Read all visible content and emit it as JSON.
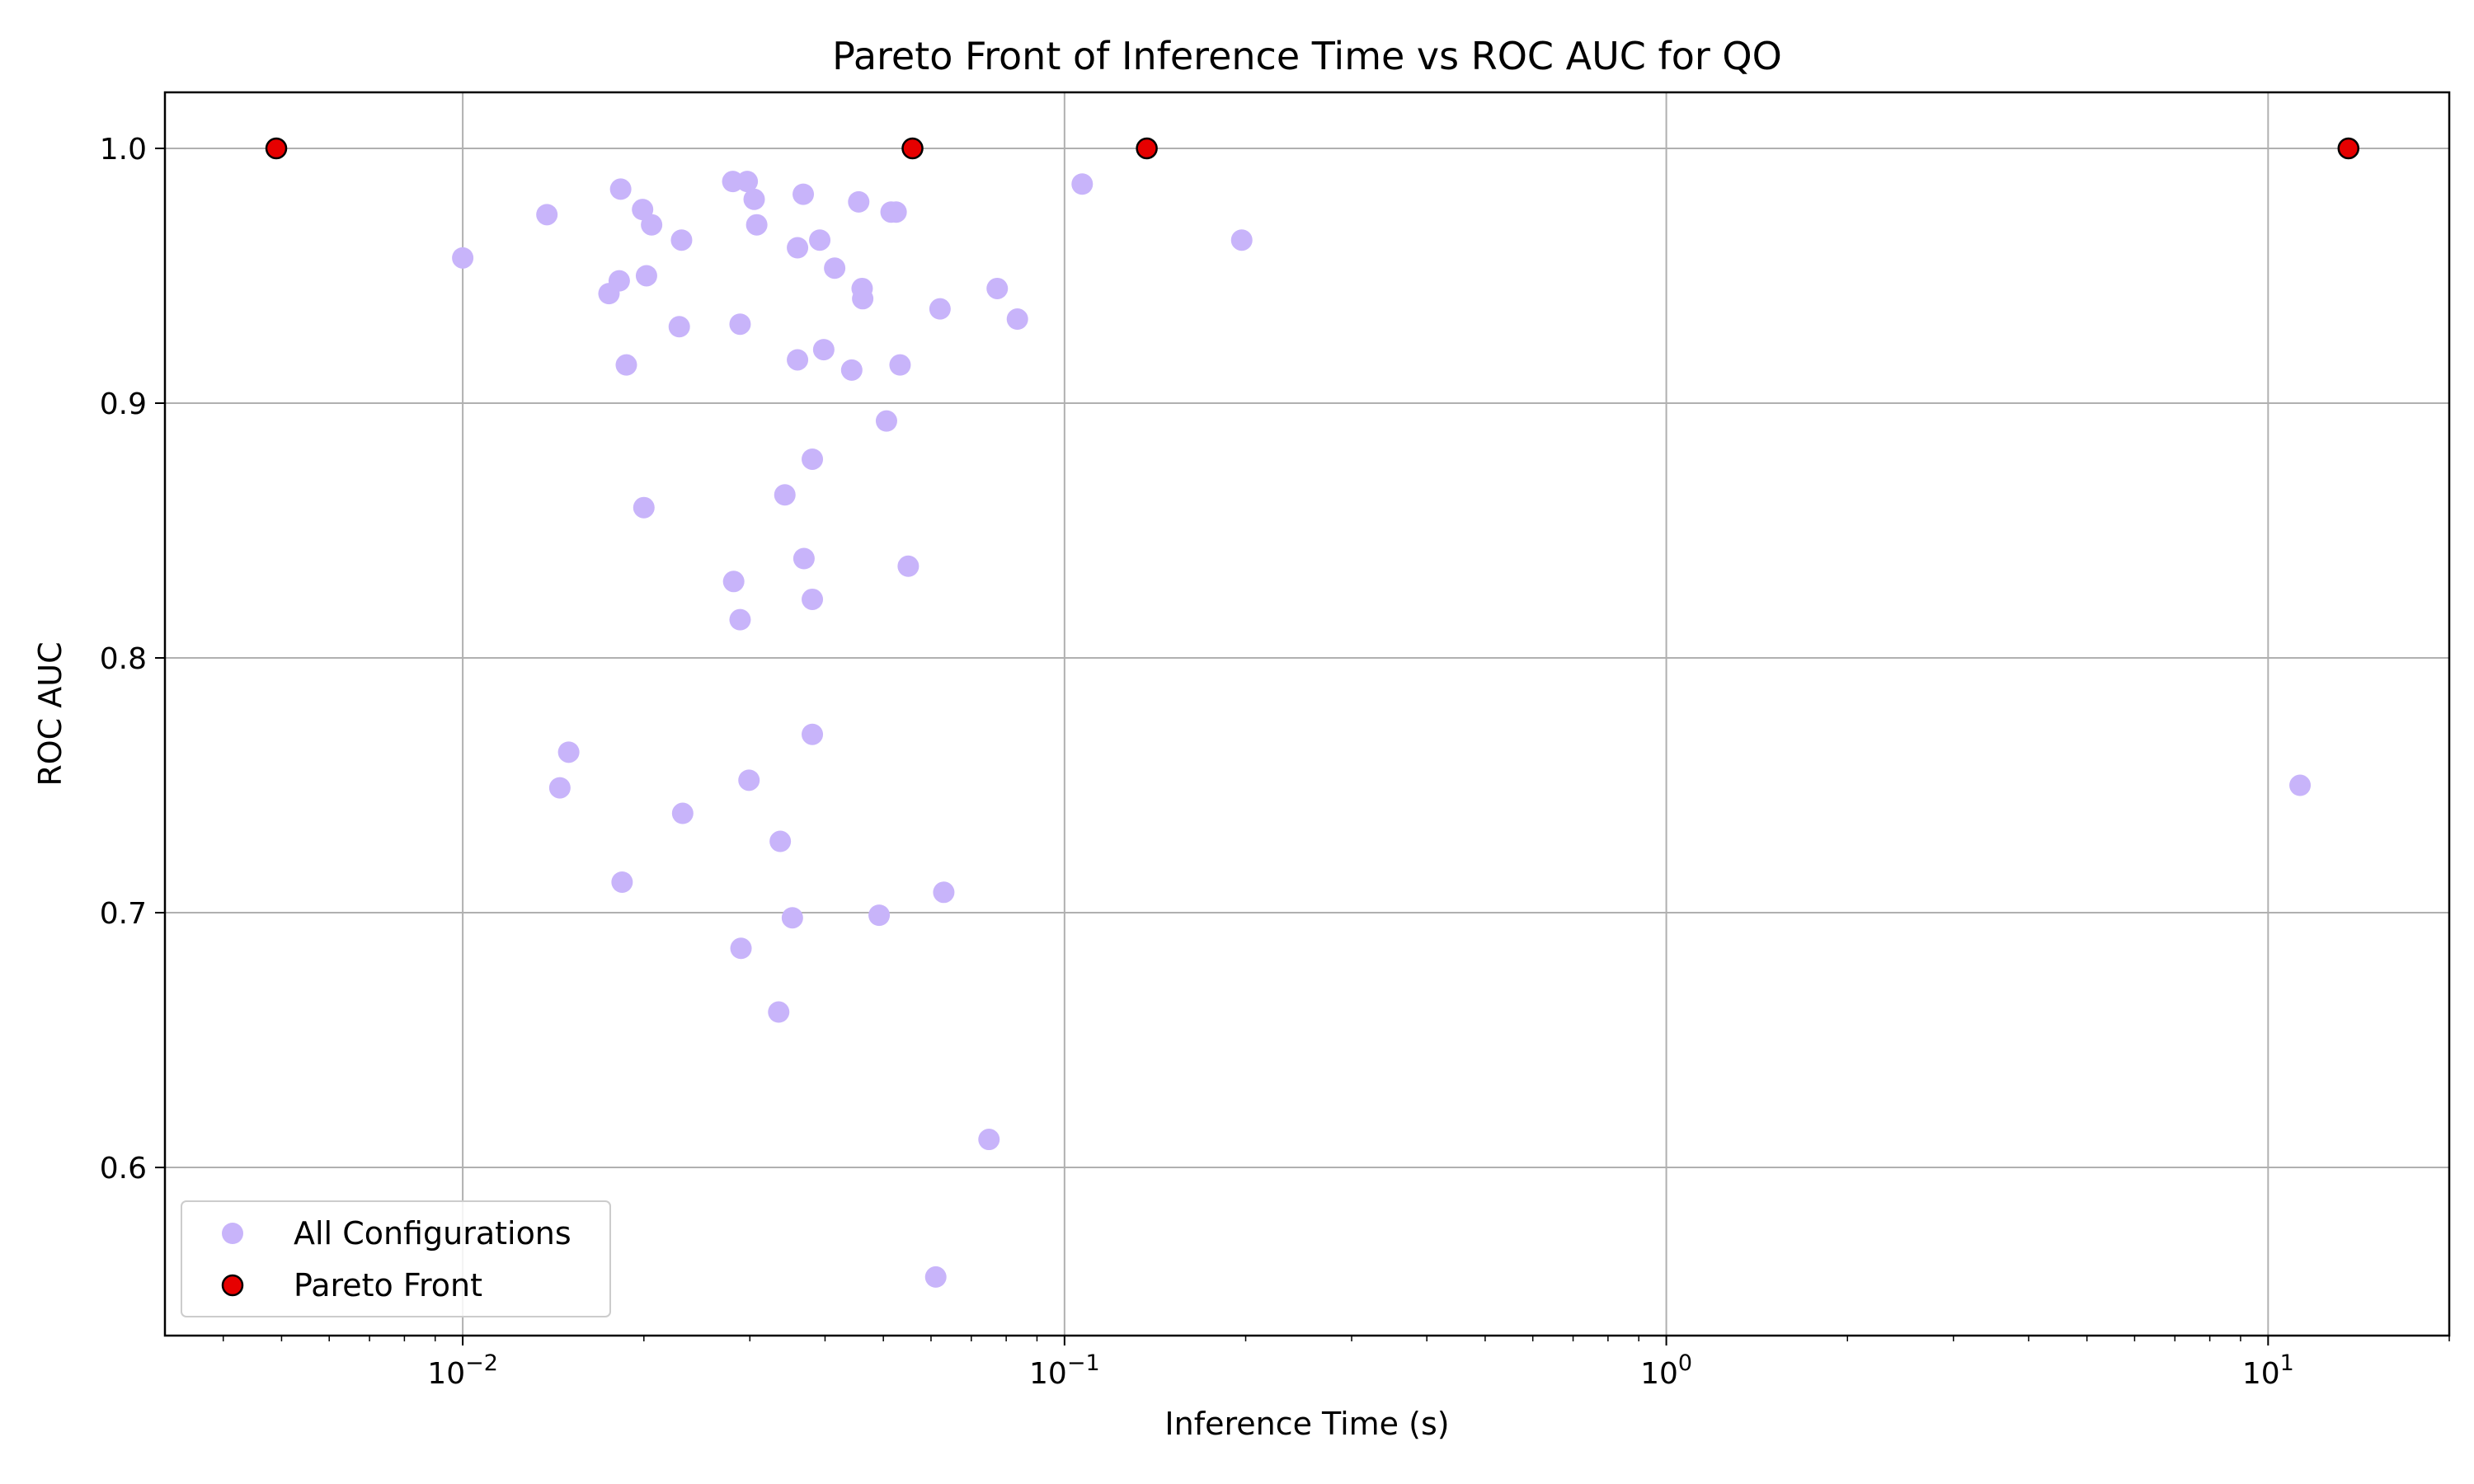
{
  "chart_data": {
    "type": "scatter",
    "title": "Pareto Front of Inference Time vs ROC AUC for QO",
    "xlabel": "Inference Time (s)",
    "ylabel": "ROC AUC",
    "xscale": "log",
    "xlim": [
      0.0032,
      20
    ],
    "ylim": [
      0.534,
      1.022
    ],
    "x_ticks": [
      {
        "value": 0.01,
        "base": "10",
        "exp": "−2"
      },
      {
        "value": 0.1,
        "base": "10",
        "exp": "−1"
      },
      {
        "value": 1,
        "base": "10",
        "exp": "0"
      },
      {
        "value": 10,
        "base": "10",
        "exp": "1"
      }
    ],
    "y_ticks": [
      {
        "value": 0.6,
        "label": "0.6"
      },
      {
        "value": 0.7,
        "label": "0.7"
      },
      {
        "value": 0.8,
        "label": "0.8"
      },
      {
        "value": 0.9,
        "label": "0.9"
      },
      {
        "value": 1.0,
        "label": "1.0"
      }
    ],
    "grid": true,
    "legend_position": "lower-left",
    "series": [
      {
        "name": "All Configurations",
        "color": "#c8b4fa",
        "points": [
          [
            0.01,
            0.957
          ],
          [
            0.0138,
            0.974
          ],
          [
            0.0183,
            0.984
          ],
          [
            0.0199,
            0.976
          ],
          [
            0.0206,
            0.97
          ],
          [
            0.0231,
            0.964
          ],
          [
            0.0182,
            0.948
          ],
          [
            0.0175,
            0.943
          ],
          [
            0.0202,
            0.95
          ],
          [
            0.0229,
            0.93
          ],
          [
            0.0187,
            0.915
          ],
          [
            0.02,
            0.859
          ],
          [
            0.0281,
            0.987
          ],
          [
            0.0297,
            0.987
          ],
          [
            0.0305,
            0.98
          ],
          [
            0.0308,
            0.97
          ],
          [
            0.0368,
            0.982
          ],
          [
            0.0455,
            0.979
          ],
          [
            0.0515,
            0.975
          ],
          [
            0.0525,
            0.975
          ],
          [
            0.036,
            0.961
          ],
          [
            0.0392,
            0.964
          ],
          [
            0.0415,
            0.953
          ],
          [
            0.0461,
            0.945
          ],
          [
            0.0462,
            0.941
          ],
          [
            0.0289,
            0.931
          ],
          [
            0.036,
            0.917
          ],
          [
            0.0398,
            0.921
          ],
          [
            0.0443,
            0.913
          ],
          [
            0.0533,
            0.915
          ],
          [
            0.0621,
            0.937
          ],
          [
            0.0773,
            0.945
          ],
          [
            0.0835,
            0.933
          ],
          [
            0.107,
            0.986
          ],
          [
            0.197,
            0.964
          ],
          [
            0.0506,
            0.893
          ],
          [
            0.0381,
            0.878
          ],
          [
            0.0343,
            0.864
          ],
          [
            0.0369,
            0.839
          ],
          [
            0.0282,
            0.83
          ],
          [
            0.055,
            0.836
          ],
          [
            0.0381,
            0.823
          ],
          [
            0.0289,
            0.815
          ],
          [
            0.0381,
            0.77
          ],
          [
            0.015,
            0.763
          ],
          [
            0.0145,
            0.749
          ],
          [
            0.0299,
            0.752
          ],
          [
            0.0232,
            0.739
          ],
          [
            0.0337,
            0.728
          ],
          [
            0.0184,
            0.712
          ],
          [
            0.0353,
            0.698
          ],
          [
            0.0492,
            0.699
          ],
          [
            0.063,
            0.708
          ],
          [
            0.029,
            0.686
          ],
          [
            0.0335,
            0.661
          ],
          [
            0.0749,
            0.611
          ],
          [
            0.0611,
            0.557
          ],
          [
            11.3,
            0.75
          ]
        ]
      },
      {
        "name": "Pareto Front",
        "color": "#e60000",
        "edge_color": "#000000",
        "points": [
          [
            0.0049,
            1.0
          ],
          [
            0.0559,
            1.0
          ],
          [
            0.137,
            1.0
          ],
          [
            13.6,
            1.0
          ]
        ]
      }
    ]
  }
}
